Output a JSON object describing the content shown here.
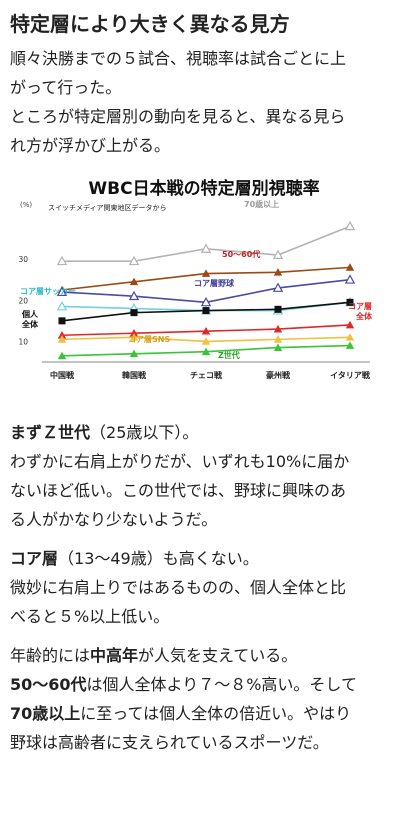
{
  "article": {
    "heading": "特定層により大きく異なる見方",
    "intro": [
      "順々決勝までの５試合、視聴率は試合ごとに上",
      "がって行った。",
      "ところが特定層別の動向を見ると、異なる見ら",
      "れ方が浮かび上がる。"
    ],
    "z_section": {
      "title_bold": "まずＺ世代",
      "title_rest": "（25歳以下）。",
      "lines": [
        "わずかに右肩上がりだが、いずれも10%に届か",
        "ないほど低い。この世代では、野球に興味のあ",
        "る人がかなり少ないようだ。"
      ]
    },
    "core_section": {
      "title_bold": "コア層",
      "title_rest": "（13〜49歳）も高くない。",
      "lines": [
        "微妙に右肩上りではあるものの、個人全体と比",
        "べると５%以上低い。"
      ]
    },
    "age_section": {
      "line1_pre": "年齢的には",
      "line1_bold": "中高年",
      "line1_post": "が人気を支えている。",
      "line2_bold": "50〜60代",
      "line2_post": "は個人全体より７〜８%高い。そして",
      "line3_bold": "70歳以上",
      "line3_post": "に至っては個人全体の倍近い。やはり",
      "line4": "野球は高齢者に支えられているスポーツだ。"
    }
  },
  "chart_data": {
    "type": "line",
    "title": "WBC日本戦の特定層別視聴率",
    "subtitle": "スイッチメディア関東地区データから",
    "ylabel": "(%)",
    "ylim": [
      5,
      40
    ],
    "yticks": [
      "10",
      "20",
      "30"
    ],
    "ytick_values": [
      10,
      20,
      30
    ],
    "categories": [
      "中国戦",
      "韓国戦",
      "チェコ戦",
      "豪州戦",
      "イタリア戦"
    ],
    "series": [
      {
        "name": "70歳以上",
        "color": "#b3b3b3",
        "marker": "triangle-open",
        "values": [
          29.5,
          29.5,
          32.5,
          31,
          38
        ]
      },
      {
        "name": "50〜60代",
        "color": "#9c4a12",
        "marker": "triangle",
        "values": [
          22.5,
          24.5,
          26.5,
          26.8,
          28
        ]
      },
      {
        "name": "コア層野球",
        "color": "#4a4aa8",
        "marker": "triangle-open",
        "values": [
          22,
          21,
          19.5,
          23,
          25
        ]
      },
      {
        "name": "コア層サッカー",
        "color": "#70d2e0",
        "marker": "triangle-open",
        "values": [
          18.5,
          18,
          17.5,
          17.5,
          19.5
        ]
      },
      {
        "name": "個人全体",
        "color": "#111111",
        "marker": "square",
        "values": [
          15,
          17,
          17.5,
          17.8,
          19.5
        ]
      },
      {
        "name": "コア層全体",
        "color": "#e02828",
        "marker": "triangle",
        "values": [
          11.5,
          12,
          12.5,
          13,
          14
        ]
      },
      {
        "name": "コア層SNS",
        "color": "#f0c040",
        "marker": "triangle",
        "values": [
          10.5,
          11,
          10,
          10.5,
          11
        ]
      },
      {
        "name": "Z世代",
        "color": "#3ac43a",
        "marker": "triangle",
        "values": [
          6.5,
          7,
          7.5,
          8.5,
          9
        ]
      }
    ],
    "labels": [
      {
        "text": "70歳以上",
        "series": "70歳以上",
        "color": "#9a9a9a"
      },
      {
        "text": "50〜60代",
        "series": "50〜60代",
        "color": "#c02020"
      },
      {
        "text": "コア層野球",
        "series": "コア層野球",
        "color": "#3a3a9a"
      },
      {
        "text": "コア層サッカー",
        "series": "コア層サッカー",
        "color": "#2ab8d0"
      },
      {
        "text": "個人",
        "series": "個人全体",
        "color": "#111111"
      },
      {
        "text": "全体",
        "series": "個人全体",
        "color": "#111111"
      },
      {
        "text": "コア層",
        "series": "コア層全体",
        "color": "#e02828"
      },
      {
        "text": "全体",
        "series": "コア層全体",
        "color": "#e02828"
      },
      {
        "text": "コア層SNS",
        "series": "コア層SNS",
        "color": "#d8a020"
      },
      {
        "text": "Z世代",
        "series": "Z世代",
        "color": "#2aa62a"
      }
    ],
    "grid": false
  }
}
